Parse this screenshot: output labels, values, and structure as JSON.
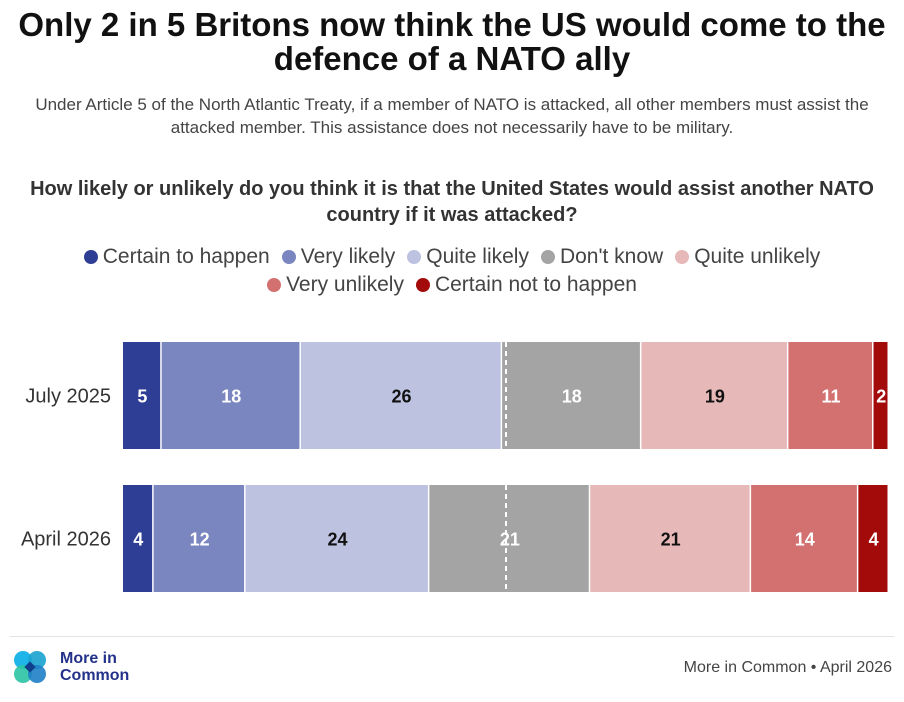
{
  "title": "Only 2 in 5 Britons now think the US would come to the defence of a NATO ally",
  "subtitle": "Under Article 5 of the North Atlantic Treaty, if a member of NATO is attacked, all other members must assist the attacked member. This assistance does not necessarily have to be military.",
  "question": "How likely or unlikely do you think it is that the United States would assist another NATO country if it was attacked?",
  "legend": {
    "row1": [
      {
        "label": "Certain to happen",
        "color": "#2f3e95"
      },
      {
        "label": "Very likely",
        "color": "#7a86bf"
      },
      {
        "label": "Quite likely",
        "color": "#bcc2e0"
      },
      {
        "label": "Don't know",
        "color": "#a4a4a4"
      },
      {
        "label": "Quite unlikely",
        "color": "#e7b8b8"
      },
      {
        "label": "Very unlikely",
        "color": "#d37070"
      },
      {
        "label": "Certain not to happen",
        "color": "#a30b0b"
      }
    ]
  },
  "chart_data": {
    "type": "bar",
    "orientation": "horizontal-stacked-100",
    "categories": [
      "July 2025",
      "April 2026"
    ],
    "series": [
      {
        "name": "Certain to happen",
        "values": [
          5,
          4
        ],
        "color": "#2f3e95",
        "label_color": "#ffffff"
      },
      {
        "name": "Very likely",
        "values": [
          18,
          12
        ],
        "color": "#7a86bf",
        "label_color": "#ffffff"
      },
      {
        "name": "Quite likely",
        "values": [
          26,
          24
        ],
        "color": "#bcc2e0",
        "label_color": "#111111"
      },
      {
        "name": "Don't know",
        "values": [
          18,
          21
        ],
        "color": "#a4a4a4",
        "label_color": "#ffffff"
      },
      {
        "name": "Quite unlikely",
        "values": [
          19,
          21
        ],
        "color": "#e7b8b8",
        "label_color": "#111111"
      },
      {
        "name": "Very unlikely",
        "values": [
          11,
          14
        ],
        "color": "#d37070",
        "label_color": "#ffffff"
      },
      {
        "name": "Certain not to happen",
        "values": [
          2,
          4
        ],
        "color": "#a30b0b",
        "label_color": "#ffffff"
      }
    ],
    "reference_line": {
      "value": 50,
      "style": "dashed",
      "color": "#ffffff"
    },
    "legend_placement": "top",
    "grid": false
  },
  "footer": {
    "logo_text": "More in Common",
    "source": "More in Common • April 2026"
  }
}
